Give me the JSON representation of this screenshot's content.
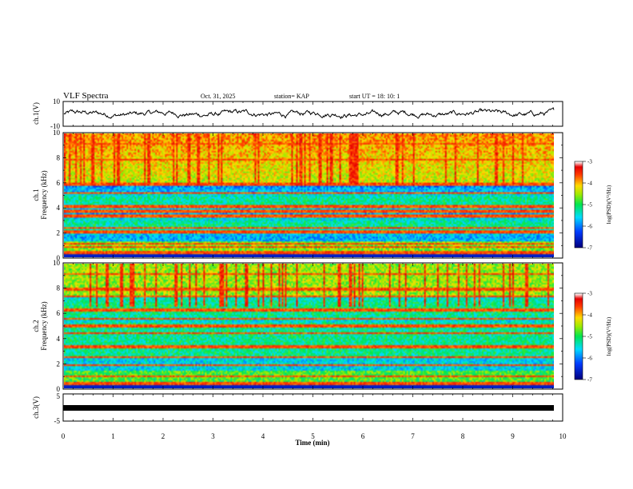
{
  "header": {
    "title": "VLF Spectra",
    "date": "Oct. 31, 2025",
    "station": "station= KAP",
    "start_ut": "start  UT =   18: 10: 1"
  },
  "chart_data": [
    {
      "id": "ch1-waveform",
      "type": "line",
      "ylabel": "ch.1(V)",
      "ylim": [
        -10,
        10
      ],
      "ytick_labels": [
        "10",
        "-10"
      ],
      "xlim": [
        0,
        10
      ]
    },
    {
      "id": "ch1-spectrogram",
      "type": "heatmap",
      "ylabel": "ch.1\nFrequency (kHz)",
      "ylim": [
        0,
        10
      ],
      "ytick_labels": [
        "0",
        "2",
        "4",
        "6",
        "8",
        "10"
      ],
      "xlim": [
        0,
        10
      ],
      "colorbar": {
        "label": "log(PSD)(V²/Hz)",
        "range": [
          -7,
          -3
        ],
        "tick_labels": [
          "-3",
          "-4",
          "-5",
          "-6",
          "-7"
        ]
      }
    },
    {
      "id": "ch2-spectrogram",
      "type": "heatmap",
      "ylabel": "ch.2\nFrequency (kHz)",
      "ylim": [
        0,
        10
      ],
      "ytick_labels": [
        "0",
        "2",
        "4",
        "6",
        "8",
        "10"
      ],
      "xlim": [
        0,
        10
      ],
      "colorbar": {
        "label": "log(PSD)(V²/Hz)",
        "range": [
          -7,
          -3
        ],
        "tick_labels": [
          "-3",
          "-4",
          "-5",
          "-6",
          "-7"
        ]
      }
    },
    {
      "id": "ch3-waveform",
      "type": "line",
      "ylabel": "ch.3(V)",
      "ylim": [
        -5,
        5
      ],
      "ytick_labels": [
        "5",
        "-5"
      ],
      "xlim": [
        0,
        10
      ],
      "xlabel": "Time  (min)",
      "xtick_labels": [
        "0",
        "1",
        "2",
        "3",
        "4",
        "5",
        "6",
        "7",
        "8",
        "9",
        "10"
      ]
    }
  ],
  "colors": {
    "trace": "#000000",
    "frame": "#000000",
    "background": "#ffffff"
  }
}
